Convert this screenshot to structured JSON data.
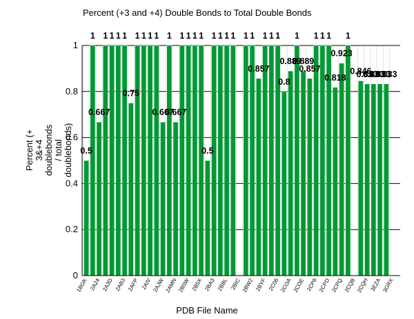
{
  "chart_data": {
    "type": "bar",
    "title": "Percent (+3 and +4) Double Bonds to Total Double Bonds",
    "xlabel": "PDB File Name",
    "ylabel_lines": [
      "Percent (+",
      "3&+4",
      "doublebonds",
      "/ total",
      "doublebonds)"
    ],
    "ylim": [
      0,
      1
    ],
    "yticks": [
      "0",
      "0.2",
      "0.4",
      "0.6",
      "0.8",
      "1"
    ],
    "ytick_values": [
      0,
      0.2,
      0.4,
      0.6,
      0.8,
      1
    ],
    "grid": true,
    "legend": "none",
    "bar_color": "#009933",
    "tick_labels": [
      "1BGK",
      "2A24",
      "2A3D",
      "2AB3",
      "2AFP",
      "2AIV",
      "2AJW",
      "2AMN",
      "2B5W",
      "2B5X",
      "2BA3",
      "2BBL",
      "2BIC",
      "2BW2",
      "2BYF",
      "2C06",
      "2COA",
      "2COE",
      "2CP8",
      "2CPD",
      "2CPQ",
      "2CQB",
      "2CQH",
      "3EZA",
      "3GRX"
    ],
    "values": [
      0.5,
      1,
      0.667,
      1,
      1,
      1,
      1,
      0.75,
      1,
      1,
      1,
      1,
      0.667,
      1,
      0.667,
      1,
      1,
      1,
      1,
      0.5,
      1,
      1,
      1,
      1,
      null,
      1,
      1,
      0.857,
      1,
      1,
      1,
      0.8,
      0.889,
      1,
      0.889,
      0.857,
      1,
      1,
      1,
      0.818,
      0.923,
      1,
      null,
      0.846,
      0.833,
      0.833,
      0.833,
      0.833
    ],
    "value_labels": [
      "0.5",
      "1",
      "0.667",
      "1",
      "1",
      "1",
      "1",
      "0.75",
      "1",
      "1",
      "1",
      "1",
      "0.667",
      "1",
      "0.667",
      "1",
      "1",
      "1",
      "1",
      "0.5",
      "1",
      "1",
      "1",
      "1",
      "",
      "1",
      "1",
      "0.857",
      "1",
      "1",
      "1",
      "0.8",
      "0.889",
      "1",
      "0.889",
      "0.857",
      "1",
      "1",
      "1",
      "0.818",
      "0.923",
      "1",
      "",
      "0.846",
      "0.833",
      "0.833",
      "0.833",
      "0.833"
    ]
  }
}
